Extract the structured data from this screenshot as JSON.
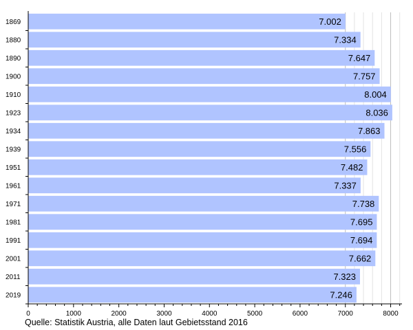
{
  "chart_data": {
    "type": "bar",
    "orientation": "horizontal",
    "categories": [
      "1869",
      "1880",
      "1890",
      "1900",
      "1910",
      "1923",
      "1934",
      "1939",
      "1951",
      "1961",
      "1971",
      "1981",
      "1991",
      "2001",
      "2011",
      "2019"
    ],
    "values": [
      7002,
      7334,
      7647,
      7757,
      8004,
      8036,
      7863,
      7556,
      7482,
      7337,
      7738,
      7695,
      7694,
      7662,
      7323,
      7246
    ],
    "value_labels": [
      "7.002",
      "7.334",
      "7.647",
      "7.757",
      "8.004",
      "8.036",
      "7.863",
      "7.556",
      "7.482",
      "7.337",
      "7.738",
      "7.695",
      "7.694",
      "7.662",
      "7.323",
      "7.246"
    ],
    "xlim": [
      0,
      8250
    ],
    "x_ticks": [
      0,
      1000,
      2000,
      3000,
      4000,
      5000,
      6000,
      7000,
      8000
    ],
    "x_tick_labels": [
      "0",
      "1000",
      "2000",
      "3000",
      "4000",
      "5000",
      "6000",
      "7000",
      "8000"
    ],
    "x_minor_step": 200,
    "grid": "vertical minor lines from 7000 to 8200",
    "bar_color": "#b0c4ff",
    "source": "Quelle: Statistik Austria, alle Daten laut Gebietsstand 2016"
  }
}
